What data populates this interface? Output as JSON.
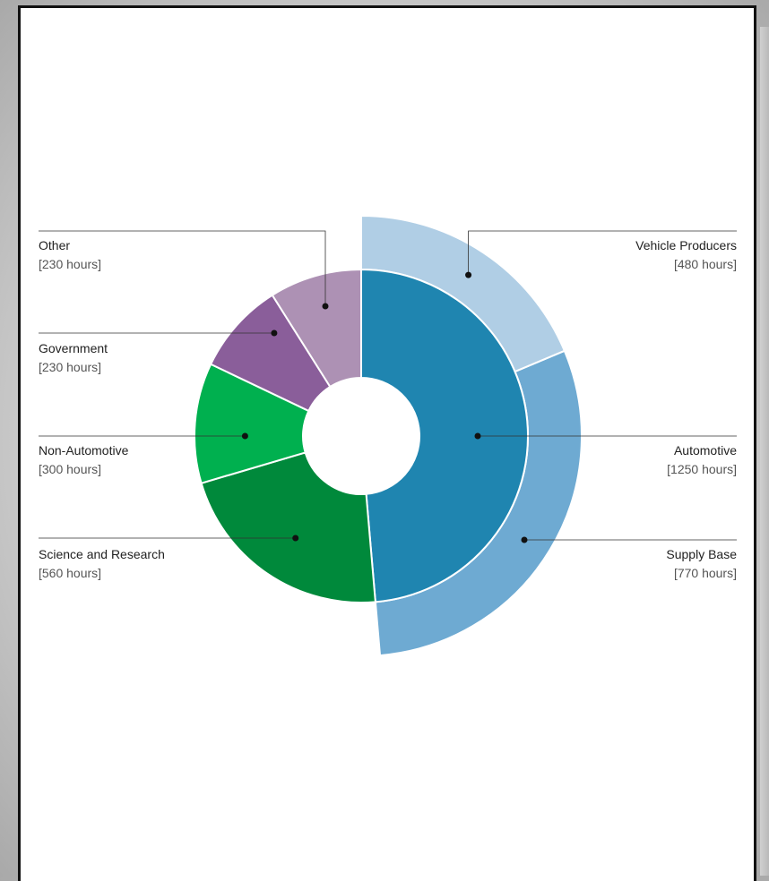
{
  "chart_data": {
    "type": "pie",
    "subtype": "nested-donut",
    "inner": [
      {
        "name": "Automotive",
        "value_label": "[1250 hours]",
        "value": 1250,
        "color": "#1f85b0"
      },
      {
        "name": "Science and Research",
        "value_label": "[560 hours]",
        "value": 560,
        "color": "#00893b"
      },
      {
        "name": "Non-Automotive",
        "value_label": "[300 hours]",
        "value": 300,
        "color": "#00b04f"
      },
      {
        "name": "Government",
        "value_label": "[230 hours]",
        "value": 230,
        "color": "#8a5e9a"
      },
      {
        "name": "Other",
        "value_label": "[230 hours]",
        "value": 230,
        "color": "#ad91b4"
      }
    ],
    "outer": [
      {
        "name": "Vehicle Producers",
        "value_label": "[480 hours]",
        "value": 480,
        "color": "#b0cee5"
      },
      {
        "name": "Supply Base",
        "value_label": "[770 hours]",
        "value": 770,
        "color": "#6eaad2"
      }
    ]
  }
}
